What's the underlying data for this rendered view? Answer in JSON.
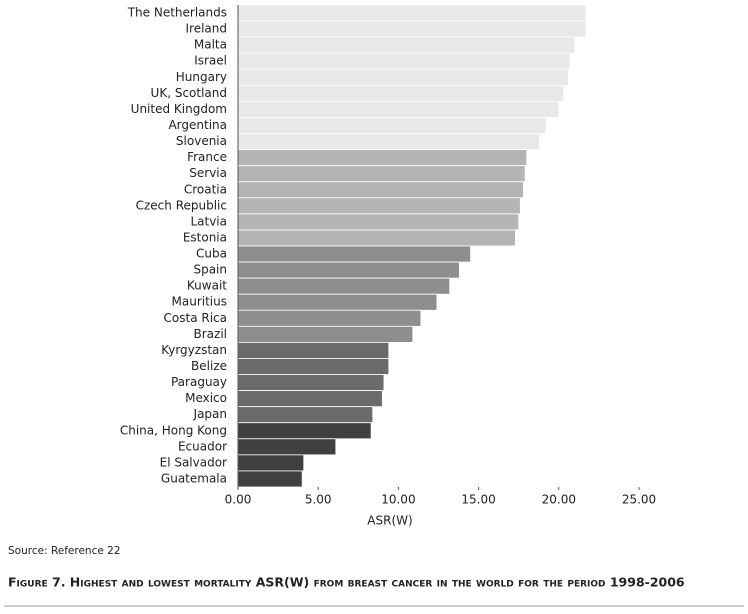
{
  "chart_data": {
    "type": "hbar",
    "categories": [
      "The Netherlands",
      "Ireland",
      "Malta",
      "Israel",
      "Hungary",
      "UK, Scotland",
      "United Kingdom",
      "Argentina",
      "Slovenia",
      "France",
      "Servia",
      "Croatia",
      "Czech Republic",
      "Latvia",
      "Estonia",
      "Cuba",
      "Spain",
      "Kuwait",
      "Mauritius",
      "Costa Rica",
      "Brazil",
      "Kyrgyzstan",
      "Belize",
      "Paraguay",
      "Mexico",
      "Japan",
      "China, Hong Kong",
      "Ecuador",
      "El Salvador",
      "Guatemala"
    ],
    "values": [
      21.7,
      21.7,
      21.0,
      20.7,
      20.6,
      20.3,
      20.0,
      19.2,
      18.8,
      18.0,
      17.9,
      17.8,
      17.6,
      17.5,
      17.3,
      14.5,
      13.8,
      13.2,
      12.4,
      11.4,
      10.9,
      9.4,
      9.4,
      9.1,
      9.0,
      8.4,
      8.3,
      6.1,
      4.1,
      4.0
    ],
    "colors": [
      "#e8e8e8",
      "#e8e8e8",
      "#e8e8e8",
      "#e8e8e8",
      "#e8e8e8",
      "#e8e8e8",
      "#e8e8e8",
      "#e8e8e8",
      "#e8e8e8",
      "#b4b4b4",
      "#b4b4b4",
      "#b4b4b4",
      "#b4b4b4",
      "#b4b4b4",
      "#b4b4b4",
      "#8e8e8e",
      "#8e8e8e",
      "#8e8e8e",
      "#8e8e8e",
      "#8e8e8e",
      "#8e8e8e",
      "#6a6a6a",
      "#6a6a6a",
      "#6a6a6a",
      "#6a6a6a",
      "#6a6a6a",
      "#404040",
      "#404040",
      "#404040",
      "#404040"
    ],
    "xlim": [
      0,
      25
    ],
    "xticks": [
      {
        "value": 0,
        "label": "0.00"
      },
      {
        "value": 5,
        "label": "5.00"
      },
      {
        "value": 10,
        "label": "10.00"
      },
      {
        "value": 15,
        "label": "15.00"
      },
      {
        "value": 20,
        "label": "20.00"
      },
      {
        "value": 25,
        "label": "25.00"
      }
    ],
    "x_label": "ASR(W)",
    "source": "Source: Reference 22",
    "caption": "Figure 7. Highest and lowest mortality ASR(W) from breast cancer in the world for the period 1998-2006"
  }
}
